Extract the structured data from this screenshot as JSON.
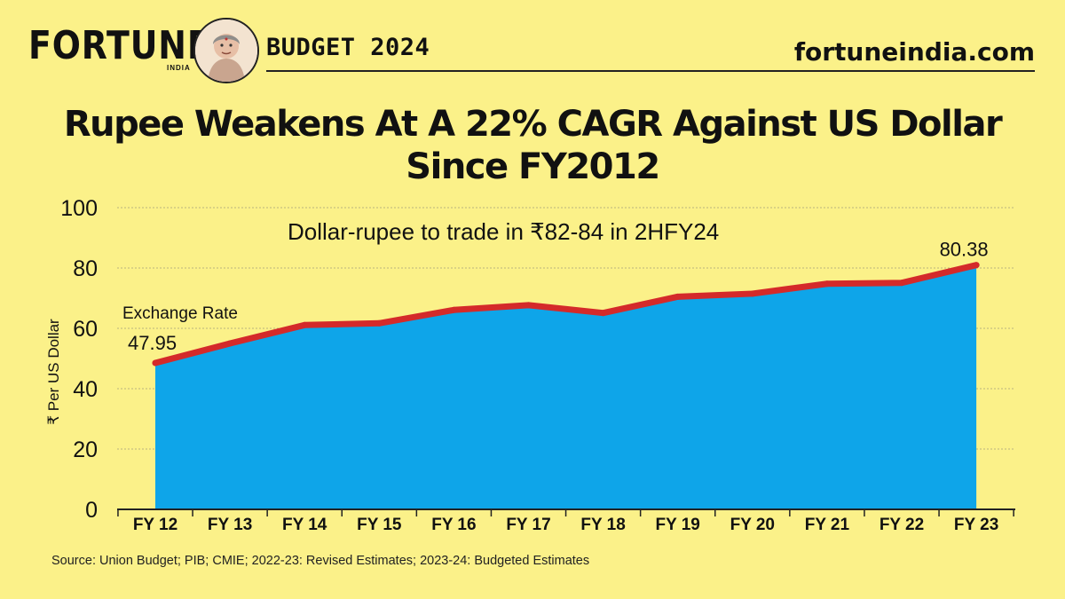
{
  "header": {
    "brand": "FORTUNE",
    "brand_sub": "INDIA",
    "section": "BUDGET 2024",
    "site": "fortuneindia.com"
  },
  "title_lines": [
    "Rupee Weakens At A 22% CAGR Against US Dollar",
    "Since FY2012"
  ],
  "chart_data": {
    "type": "area",
    "subtitle": "Dollar-rupee to trade in ₹82-84 in 2HFY24",
    "categories": [
      "FY 12",
      "FY 13",
      "FY 14",
      "FY 15",
      "FY 16",
      "FY 17",
      "FY 18",
      "FY 19",
      "FY 20",
      "FY 21",
      "FY 22",
      "FY 23"
    ],
    "series": [
      {
        "name": "Exchange Rate",
        "values": [
          47.95,
          54.4,
          60.5,
          61.1,
          65.5,
          67.1,
          64.5,
          69.9,
          70.9,
          74.2,
          74.5,
          80.38
        ]
      }
    ],
    "point_labels": [
      {
        "index": 0,
        "text": "47.95"
      },
      {
        "index": 11,
        "text": "80.38"
      }
    ],
    "ylabel": "₹ Per US Dollar",
    "yticks": [
      0,
      20,
      40,
      60,
      80,
      100
    ],
    "ylim": [
      0,
      100
    ],
    "grid": true,
    "colors": {
      "fill": "#0ea5e9",
      "line": "#d42a2a",
      "grid": "#b9b47e",
      "axis": "#222222"
    }
  },
  "source": "Source: Union Budget; PIB; CMIE; 2022-23: Revised Estimates; 2023-24: Budgeted Estimates"
}
